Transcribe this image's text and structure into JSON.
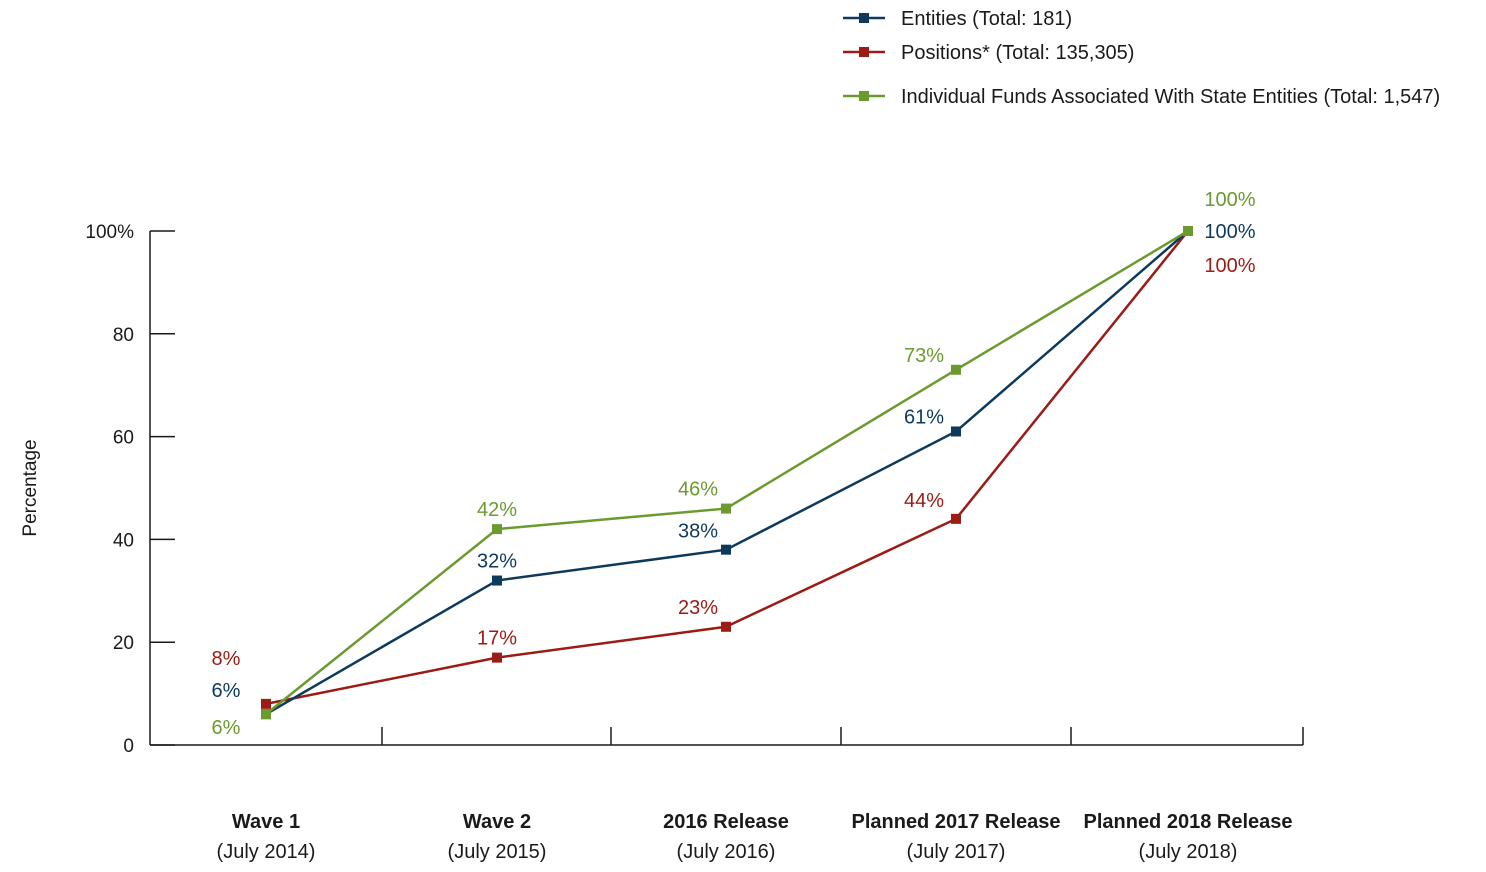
{
  "chart_data": {
    "type": "line",
    "ylabel": "Percentage",
    "xlabel": "",
    "ylim": [
      0,
      100
    ],
    "yticks": [
      "0",
      "20",
      "40",
      "60",
      "80",
      "100%"
    ],
    "categories": [
      {
        "main": "Wave 1",
        "sub": "(July 2014)"
      },
      {
        "main": "Wave 2",
        "sub": "(July 2015)"
      },
      {
        "main": "2016 Release",
        "sub": "(July 2016)"
      },
      {
        "main": "Planned 2017 Release",
        "sub": "(July 2017)"
      },
      {
        "main": "Planned 2018 Release",
        "sub": "(July 2018)"
      }
    ],
    "legend_position": "top-right",
    "series": [
      {
        "name": "Entities (Total: 181)",
        "color": "#0d3a5c",
        "values": [
          6,
          32,
          38,
          61,
          100
        ],
        "labels": [
          "6%",
          "32%",
          "38%",
          "61%",
          "100%"
        ]
      },
      {
        "name": "Positions* (Total: 135,305)",
        "color": "#9b1b15",
        "values": [
          8,
          17,
          23,
          44,
          100
        ],
        "labels": [
          "8%",
          "17%",
          "23%",
          "44%",
          "100%"
        ]
      },
      {
        "name": "Individual Funds Associated With State Entities (Total: 1,547)",
        "color": "#6b9a2f",
        "values": [
          6,
          42,
          46,
          73,
          100
        ],
        "labels": [
          "6%",
          "42%",
          "46%",
          "73%",
          "100%"
        ]
      }
    ]
  }
}
